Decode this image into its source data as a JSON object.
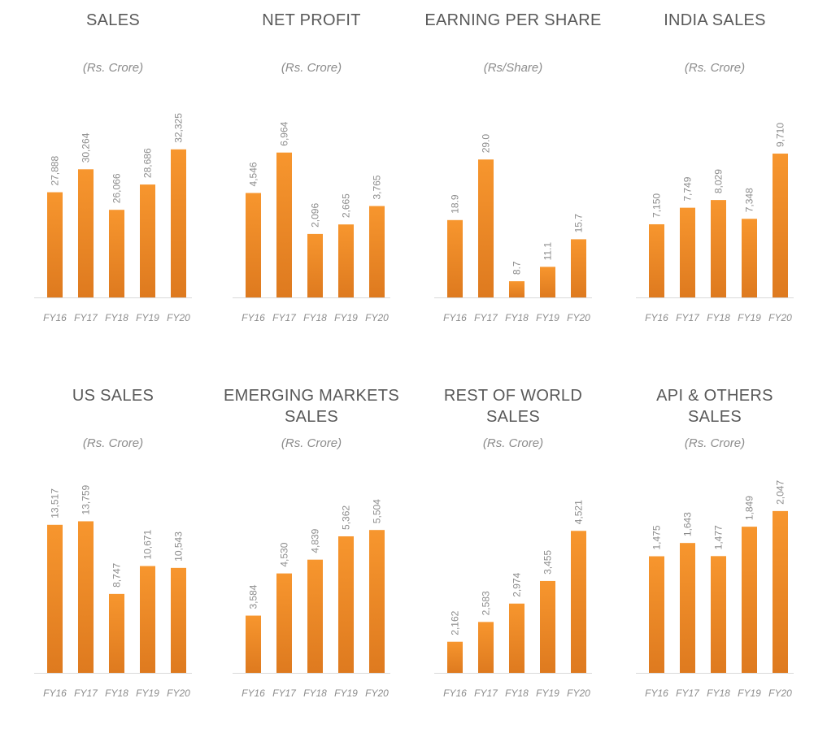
{
  "colors": {
    "bar_top": "#f7962e",
    "bar_bottom": "#de7a1f",
    "axis": "#d9d9d9",
    "text": "#595959",
    "muted": "#8c8c8c"
  },
  "chart_data": [
    {
      "type": "bar",
      "title": "SALES",
      "subtitle": "(Rs. Crore)",
      "categories": [
        "FY16",
        "FY17",
        "FY18",
        "FY19",
        "FY20"
      ],
      "values": [
        27888,
        30264,
        26066,
        28686,
        32325
      ],
      "labels": [
        "27,888",
        "30,264",
        "26,066",
        "28,686",
        "32,325"
      ],
      "ylim": [
        17000,
        35000
      ]
    },
    {
      "type": "bar",
      "title": "NET PROFIT",
      "subtitle": "(Rs. Crore)",
      "categories": [
        "FY16",
        "FY17",
        "FY18",
        "FY19",
        "FY20"
      ],
      "values": [
        4546,
        6964,
        2096,
        2665,
        3765
      ],
      "labels": [
        "4,546",
        "6,964",
        "2,096",
        "2,665",
        "3,765"
      ],
      "ylim": [
        -1700,
        8700
      ]
    },
    {
      "type": "bar",
      "title": "EARNING PER SHARE",
      "subtitle": "(Rs/Share)",
      "categories": [
        "FY16",
        "FY17",
        "FY18",
        "FY19",
        "FY20"
      ],
      "values": [
        18.9,
        29.0,
        8.7,
        11.1,
        15.7
      ],
      "labels": [
        "18.9",
        "29.0",
        "8.7",
        "11.1",
        "15.7"
      ],
      "ylim": [
        6,
        35
      ]
    },
    {
      "type": "bar",
      "title": "INDIA SALES",
      "subtitle": "(Rs. Crore)",
      "categories": [
        "FY16",
        "FY17",
        "FY18",
        "FY19",
        "FY20"
      ],
      "values": [
        7150,
        7749,
        8029,
        7348,
        9710
      ],
      "labels": [
        "7,150",
        "7,749",
        "8,029",
        "7,348",
        "9,710"
      ],
      "ylim": [
        4500,
        10800
      ]
    },
    {
      "type": "bar",
      "title": "US SALES",
      "subtitle": "(Rs. Crore)",
      "categories": [
        "FY16",
        "FY17",
        "FY18",
        "FY19",
        "FY20"
      ],
      "values": [
        13517,
        13759,
        8747,
        10671,
        10543
      ],
      "labels": [
        "13,517",
        "13,759",
        "8,747",
        "10,671",
        "10,543"
      ],
      "ylim": [
        3300,
        15300
      ]
    },
    {
      "type": "bar",
      "title": "EMERGING MARKETS SALES",
      "subtitle": "(Rs. Crore)",
      "categories": [
        "FY16",
        "FY17",
        "FY18",
        "FY19",
        "FY20"
      ],
      "values": [
        3584,
        4530,
        4839,
        5362,
        5504
      ],
      "labels": [
        "3,584",
        "4,530",
        "4,839",
        "5,362",
        "5,504"
      ],
      "ylim": [
        2300,
        6200
      ]
    },
    {
      "type": "bar",
      "title": "REST OF WORLD SALES",
      "subtitle": "(Rs. Crore)",
      "categories": [
        "FY16",
        "FY17",
        "FY18",
        "FY19",
        "FY20"
      ],
      "values": [
        2162,
        2583,
        2974,
        3455,
        4521
      ],
      "labels": [
        "2,162",
        "2,583",
        "2,974",
        "3,455",
        "4,521"
      ],
      "ylim": [
        1500,
        5200
      ]
    },
    {
      "type": "bar",
      "title": "API & OTHERS SALES",
      "subtitle": "(Rs. Crore)",
      "categories": [
        "FY16",
        "FY17",
        "FY18",
        "FY19",
        "FY20"
      ],
      "values": [
        1475,
        1643,
        1477,
        1849,
        2047
      ],
      "labels": [
        "1,475",
        "1,643",
        "1,477",
        "1,849",
        "2,047"
      ],
      "ylim": [
        0,
        2200
      ]
    }
  ]
}
